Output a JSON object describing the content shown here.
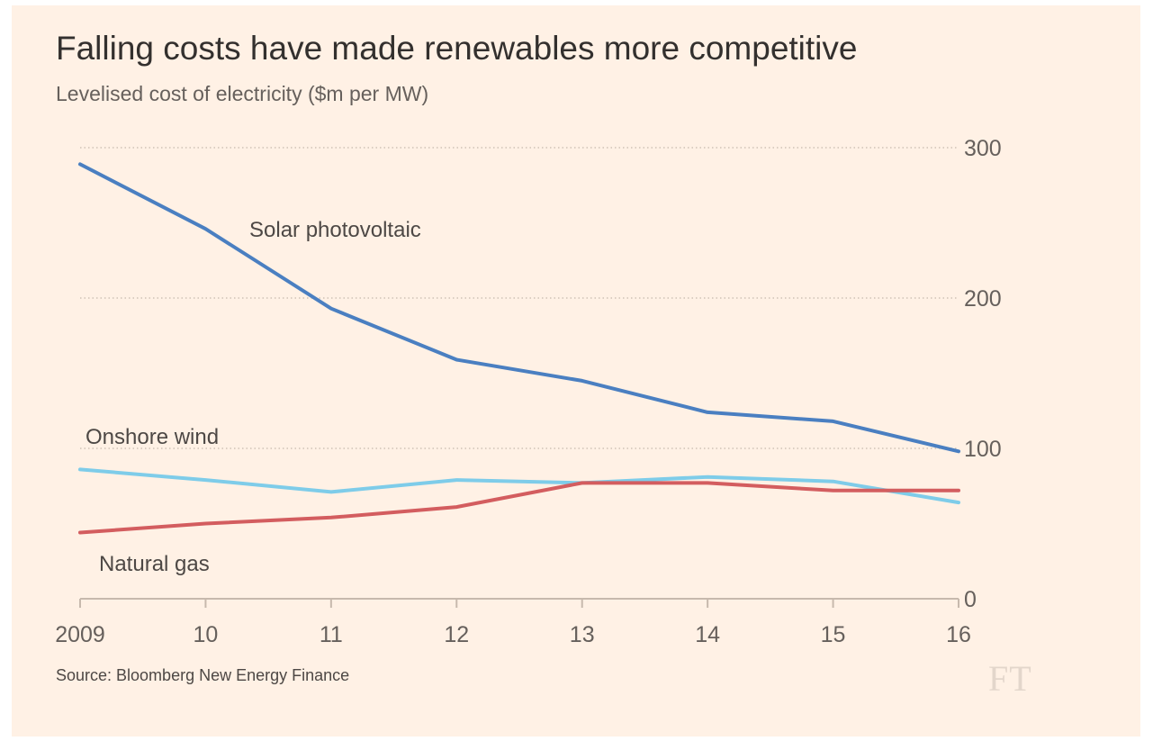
{
  "chart_data": {
    "type": "line",
    "title": "Falling costs have made renewables more competitive",
    "subtitle": "Levelised cost of electricity ($m per MW)",
    "x": [
      2009,
      2010,
      2011,
      2012,
      2013,
      2014,
      2015,
      2016
    ],
    "x_tick_labels": [
      "2009",
      "10",
      "11",
      "12",
      "13",
      "14",
      "15",
      "16"
    ],
    "y_ticks": [
      0,
      100,
      200,
      300
    ],
    "y_tick_labels": [
      "0",
      "100",
      "200",
      "300"
    ],
    "ylim": [
      0,
      300
    ],
    "y_axis_side": "right",
    "grid": "horizontal dotted",
    "series": [
      {
        "name": "Solar photovoltaic",
        "color": "#4a7fc1",
        "values": [
          289,
          246,
          193,
          159,
          145,
          124,
          118,
          98
        ]
      },
      {
        "name": "Onshore wind",
        "color": "#7ecce9",
        "values": [
          86,
          79,
          71,
          79,
          77,
          81,
          78,
          64
        ]
      },
      {
        "name": "Natural gas",
        "color": "#d35d5f",
        "values": [
          44,
          50,
          54,
          61,
          77,
          77,
          72,
          72
        ]
      }
    ],
    "source": "Source: Bloomberg New Energy Finance"
  },
  "logo": "FT"
}
